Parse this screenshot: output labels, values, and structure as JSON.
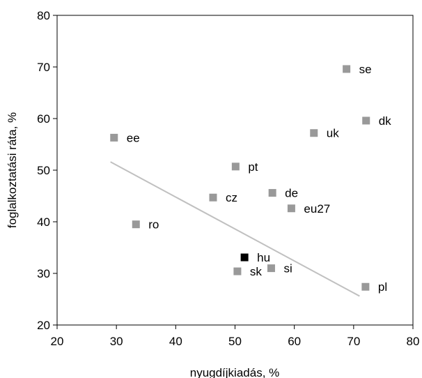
{
  "chart_data": {
    "type": "scatter",
    "xlabel": "nyugdíjkiadás, %",
    "ylabel": "foglalkoztatási ráta, %",
    "xlim": [
      20,
      80
    ],
    "ylim": [
      20,
      80
    ],
    "xticks": [
      "20",
      "30",
      "40",
      "50",
      "60",
      "70",
      "80"
    ],
    "yticks": [
      "20",
      "30",
      "40",
      "50",
      "60",
      "70",
      "80"
    ],
    "grid": false,
    "marker_color": "#999999",
    "highlight_color": "#000000",
    "trendline_color": "#c0c0c0",
    "points": [
      {
        "label": "se",
        "x": 68.8,
        "y": 69.6,
        "highlight": false
      },
      {
        "label": "dk",
        "x": 72.1,
        "y": 59.6,
        "highlight": false
      },
      {
        "label": "ee",
        "x": 29.6,
        "y": 56.3,
        "highlight": false
      },
      {
        "label": "uk",
        "x": 63.3,
        "y": 57.2,
        "highlight": false
      },
      {
        "label": "pt",
        "x": 50.1,
        "y": 50.7,
        "highlight": false
      },
      {
        "label": "de",
        "x": 56.3,
        "y": 45.6,
        "highlight": false
      },
      {
        "label": "cz",
        "x": 46.3,
        "y": 44.7,
        "highlight": false
      },
      {
        "label": "eu27",
        "x": 59.5,
        "y": 42.6,
        "highlight": false
      },
      {
        "label": "ro",
        "x": 33.3,
        "y": 39.5,
        "highlight": false
      },
      {
        "label": "hu",
        "x": 51.6,
        "y": 33.1,
        "highlight": true
      },
      {
        "label": "si",
        "x": 56.1,
        "y": 31.0,
        "highlight": false
      },
      {
        "label": "sk",
        "x": 50.4,
        "y": 30.4,
        "highlight": false
      },
      {
        "label": "pl",
        "x": 72.0,
        "y": 27.4,
        "highlight": false
      }
    ],
    "trendline": {
      "x1": 29.0,
      "y1": 51.6,
      "x2": 71.0,
      "y2": 25.6
    }
  }
}
